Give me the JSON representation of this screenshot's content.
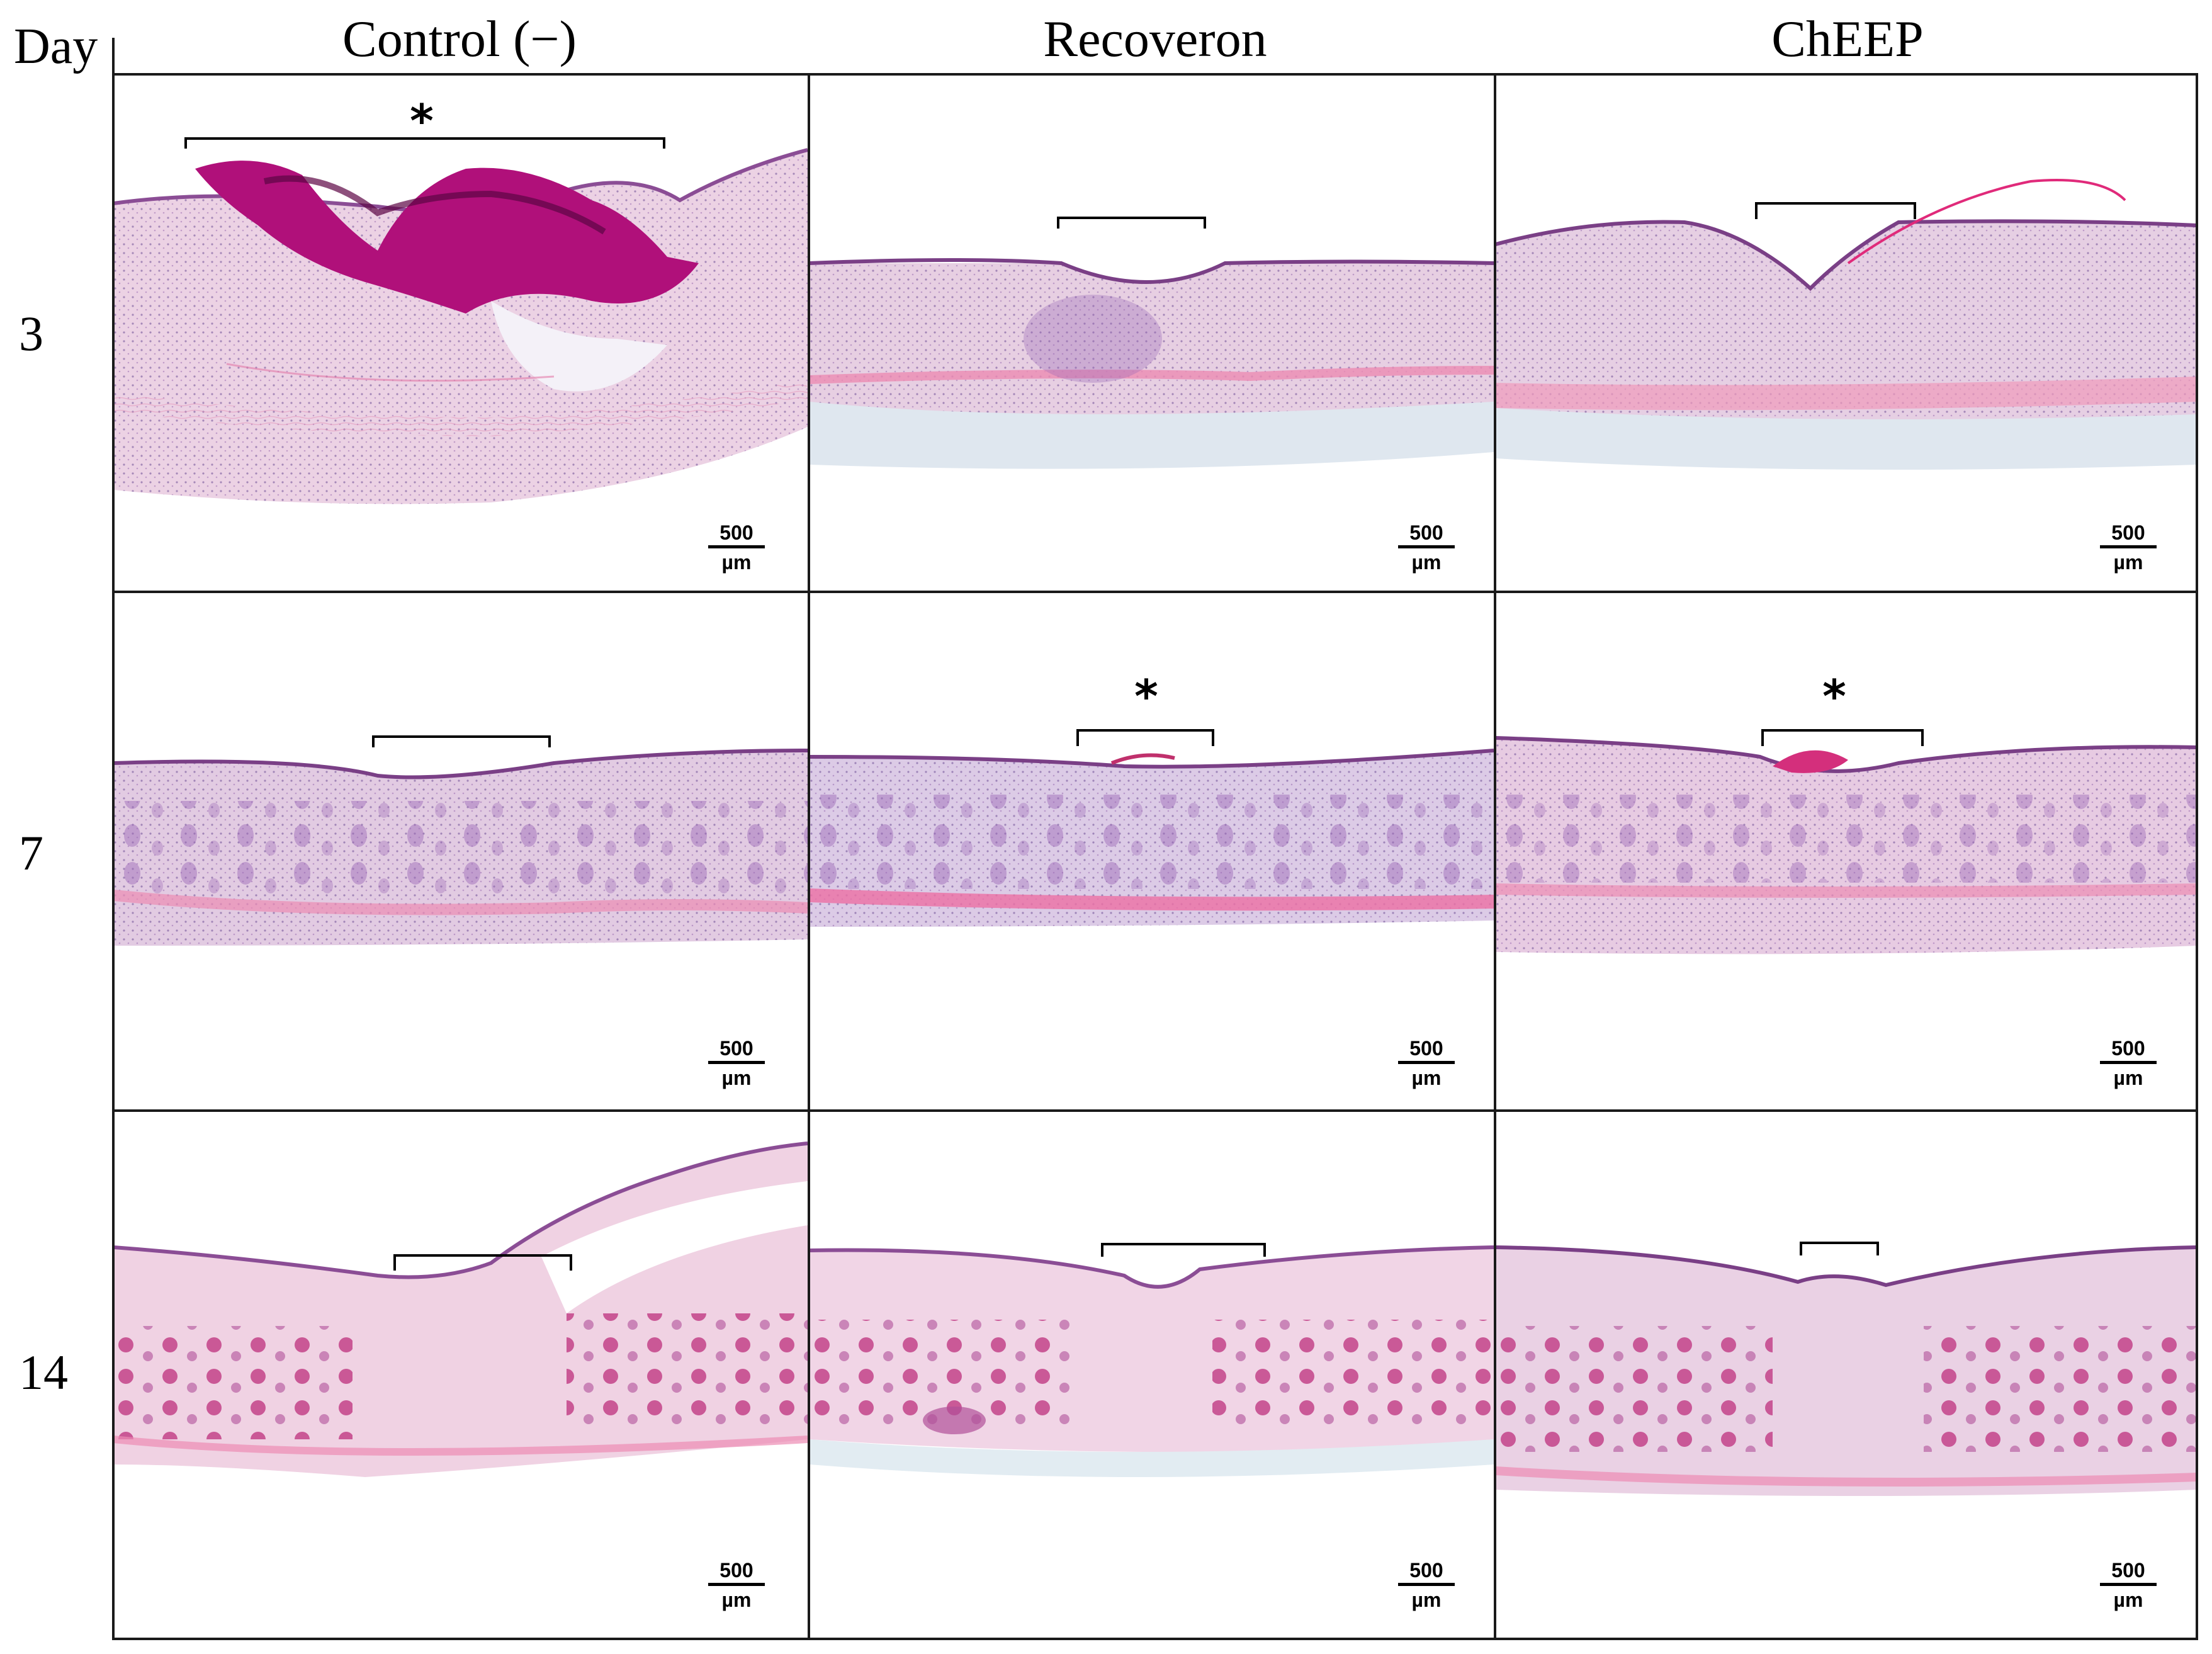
{
  "header": {
    "day_label": "Day",
    "columns": [
      "Control (−)",
      "Recoveron",
      "ChEEP"
    ]
  },
  "rows": [
    {
      "day": "3"
    },
    {
      "day": "7"
    },
    {
      "day": "14"
    }
  ],
  "scale_bar": {
    "value": "500",
    "unit": "µm"
  },
  "wound_marker": "*",
  "colors": {
    "tissue_pink": "#e9c8de",
    "tissue_violet": "#c3a6cf",
    "epidermis": "#7a3f86",
    "eschar": "#b0107a",
    "collagen_pink": "#ec8bb3",
    "follicle": "#a05595",
    "grid": "#1a1a1a"
  }
}
